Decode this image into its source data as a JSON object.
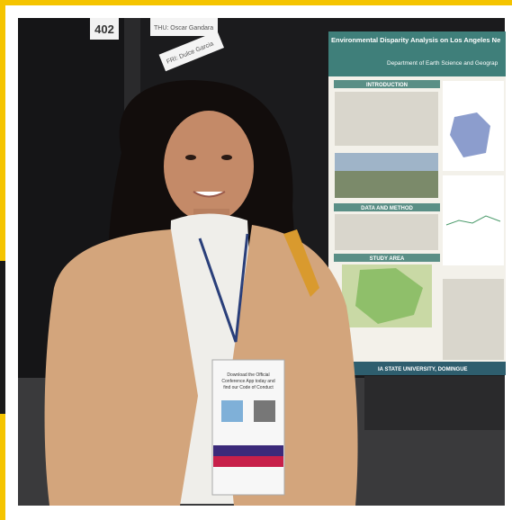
{
  "signs": {
    "booth": "402",
    "thursday": "THU: Oscar Gandara",
    "friday": "FRI: Dulce Garcia"
  },
  "poster": {
    "title": "Environmental Disparity Analysis on Los Angeles Ne",
    "department": "Department of Earth Science and Geograp",
    "sections": [
      "INTRODUCTION",
      "DATA AND METHOD",
      "STUDY AREA"
    ],
    "footer": "IA STATE UNIVERSITY, DOMINGUE"
  },
  "badge": {
    "lines": [
      "Download the Official",
      "Conference App today and",
      "find our Code of Conduct"
    ]
  }
}
